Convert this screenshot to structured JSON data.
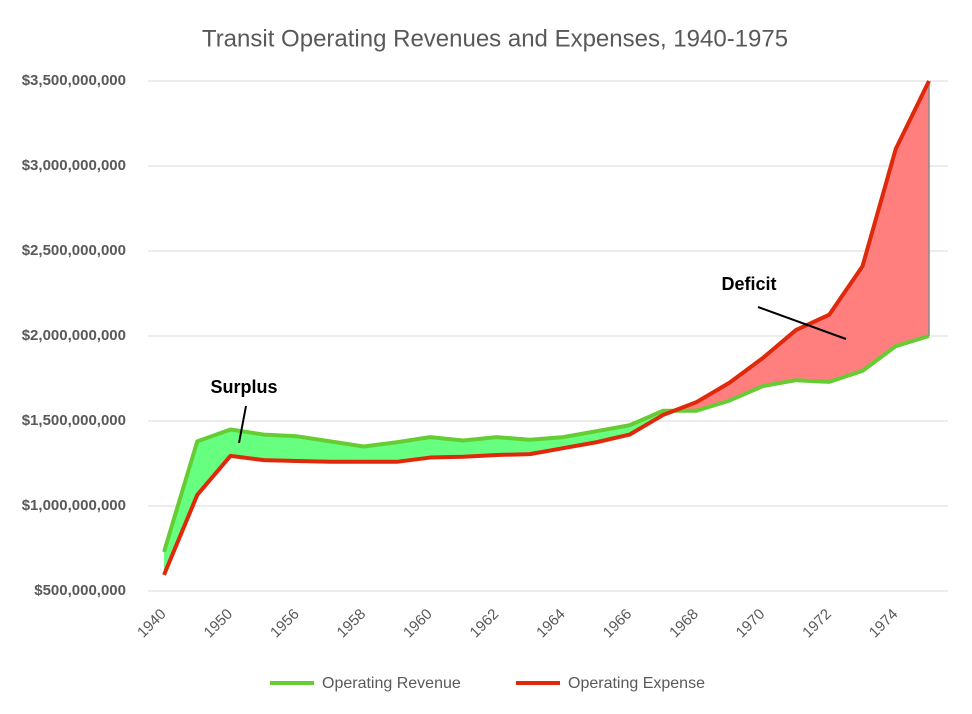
{
  "chart_data": {
    "type": "line",
    "title": "Transit Operating Revenues and Expenses, 1940-1975",
    "categories": [
      "1940",
      null,
      "1950",
      null,
      "1956",
      null,
      "1958",
      null,
      "1960",
      null,
      "1962",
      null,
      "1964",
      null,
      "1966",
      null,
      "1968",
      null,
      "1970",
      null,
      "1972",
      null,
      "1974",
      null
    ],
    "series": [
      {
        "name": "Operating Revenue",
        "color": "#66cc33",
        "fill": "#66ff80",
        "values": [
          730000000,
          1380000000,
          1450000000,
          1420000000,
          1410000000,
          1380000000,
          1350000000,
          1375000000,
          1405000000,
          1385000000,
          1405000000,
          1390000000,
          1405000000,
          1440000000,
          1475000000,
          1560000000,
          1560000000,
          1620000000,
          1705000000,
          1740000000,
          1730000000,
          1795000000,
          1940000000,
          2000000000
        ]
      },
      {
        "name": "Operating Expense",
        "color": "#e0280a",
        "fill": "#ff7f7f",
        "values": [
          595000000,
          1065000000,
          1295000000,
          1270000000,
          1265000000,
          1260000000,
          1260000000,
          1260000000,
          1285000000,
          1290000000,
          1300000000,
          1305000000,
          1340000000,
          1375000000,
          1420000000,
          1535000000,
          1610000000,
          1725000000,
          1870000000,
          2035000000,
          2125000000,
          2410000000,
          3100000000,
          3500000000
        ]
      }
    ],
    "ylim": [
      500000000,
      3500000000
    ],
    "yticks": [
      {
        "value": 500000000,
        "label": "$500,000,000"
      },
      {
        "value": 1000000000,
        "label": "$1,000,000,000"
      },
      {
        "value": 1500000000,
        "label": "$1,500,000,000"
      },
      {
        "value": 2000000000,
        "label": "$2,000,000,000"
      },
      {
        "value": 2500000000,
        "label": "$2,500,000,000"
      },
      {
        "value": 3000000000,
        "label": "$3,000,000,000"
      },
      {
        "value": 3500000000,
        "label": "$3,500,000,000"
      }
    ],
    "grid": true,
    "legend": "bottom",
    "annotations": [
      {
        "text": "Surplus"
      },
      {
        "text": "Deficit"
      }
    ]
  }
}
